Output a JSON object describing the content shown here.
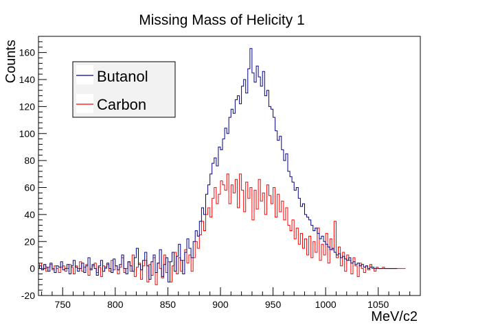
{
  "chart_data": {
    "type": "histogram",
    "title": "Missing Mass of Helicity 1",
    "xlabel": "MeV/c2",
    "ylabel": "Counts",
    "xlim": [
      727,
      1090
    ],
    "ylim": [
      -20,
      172
    ],
    "x_ticks": [
      750,
      800,
      850,
      900,
      950,
      1000,
      1050
    ],
    "y_ticks": [
      -20,
      0,
      20,
      40,
      60,
      80,
      100,
      120,
      140,
      160
    ],
    "legend": {
      "position": "top-left",
      "entries": [
        "Butanol",
        "Carbon"
      ]
    },
    "x": [
      727,
      729,
      731,
      733,
      735,
      737,
      739,
      741,
      743,
      745,
      747,
      749,
      751,
      753,
      755,
      757,
      759,
      761,
      763,
      765,
      767,
      769,
      771,
      773,
      775,
      777,
      779,
      781,
      783,
      785,
      787,
      789,
      791,
      793,
      795,
      797,
      799,
      801,
      803,
      805,
      807,
      809,
      811,
      813,
      815,
      817,
      819,
      821,
      823,
      825,
      827,
      829,
      831,
      833,
      835,
      837,
      839,
      841,
      843,
      845,
      847,
      849,
      851,
      853,
      855,
      857,
      859,
      861,
      863,
      865,
      867,
      869,
      871,
      873,
      875,
      877,
      879,
      881,
      883,
      885,
      887,
      889,
      891,
      893,
      895,
      897,
      899,
      901,
      903,
      905,
      907,
      909,
      911,
      913,
      915,
      917,
      919,
      921,
      923,
      925,
      927,
      929,
      931,
      933,
      935,
      937,
      939,
      941,
      943,
      945,
      947,
      949,
      951,
      953,
      955,
      957,
      959,
      961,
      963,
      965,
      967,
      969,
      971,
      973,
      975,
      977,
      979,
      981,
      983,
      985,
      987,
      989,
      991,
      993,
      995,
      997,
      999,
      1001,
      1003,
      1005,
      1007,
      1009,
      1011,
      1013,
      1015,
      1017,
      1019,
      1021,
      1023,
      1025,
      1027,
      1029,
      1031,
      1033,
      1035,
      1037,
      1039,
      1041,
      1043,
      1045,
      1047,
      1049,
      1051,
      1053,
      1055,
      1057,
      1059,
      1061,
      1063,
      1065,
      1067,
      1069,
      1071,
      1073,
      1075,
      1077,
      1079,
      1081,
      1083,
      1085,
      1087,
      1089
    ],
    "series": [
      {
        "name": "Butanol",
        "color": "#00008b",
        "values": [
          0,
          2,
          -1,
          3,
          1,
          -2,
          4,
          0,
          -3,
          2,
          1,
          5,
          -1,
          0,
          3,
          -4,
          2,
          6,
          1,
          -2,
          0,
          4,
          -3,
          2,
          8,
          -1,
          3,
          0,
          -5,
          2,
          6,
          -2,
          1,
          4,
          0,
          -3,
          7,
          2,
          -1,
          3,
          10,
          0,
          -4,
          5,
          2,
          -2,
          8,
          15,
          3,
          -1,
          6,
          12,
          2,
          -8,
          5,
          10,
          -3,
          4,
          14,
          -6,
          3,
          8,
          -10,
          5,
          12,
          -2,
          9,
          18,
          6,
          -4,
          12,
          22,
          15,
          8,
          20,
          28,
          24,
          35,
          45,
          40,
          55,
          62,
          70,
          78,
          82,
          76,
          90,
          88,
          96,
          104,
          100,
          112,
          118,
          115,
          125,
          128,
          122,
          135,
          140,
          130,
          148,
          163,
          145,
          138,
          150,
          142,
          135,
          146,
          128,
          132,
          120,
          118,
          112,
          102,
          95,
          98,
          88,
          80,
          85,
          72,
          68,
          64,
          58,
          60,
          52,
          46,
          48,
          40,
          38,
          36,
          32,
          28,
          30,
          26,
          22,
          24,
          20,
          18,
          16,
          14,
          15,
          12,
          10,
          11,
          8,
          9,
          7,
          6,
          8,
          4,
          5,
          3,
          4,
          2,
          3,
          1,
          2,
          0,
          1,
          1,
          0,
          0,
          0,
          0,
          0,
          0,
          0,
          0,
          0,
          0,
          0
        ]
      },
      {
        "name": "Carbon",
        "color": "#ff0000",
        "values": [
          2,
          4,
          0,
          3,
          -2,
          1,
          3,
          -1,
          2,
          0,
          -3,
          1,
          2,
          -2,
          0,
          3,
          1,
          -4,
          2,
          0,
          5,
          -2,
          1,
          3,
          -5,
          0,
          2,
          4,
          -3,
          1,
          -6,
          2,
          0,
          3,
          -2,
          6,
          -1,
          2,
          -4,
          1,
          8,
          -3,
          0,
          5,
          -2,
          10,
          -6,
          1,
          4,
          -8,
          2,
          6,
          -10,
          3,
          -5,
          8,
          -12,
          4,
          0,
          -7,
          10,
          -3,
          5,
          -10,
          2,
          12,
          -4,
          8,
          -2,
          6,
          14,
          4,
          10,
          -2,
          8,
          20,
          15,
          25,
          35,
          28,
          40,
          45,
          38,
          52,
          60,
          48,
          55,
          65,
          62,
          58,
          70,
          48,
          62,
          56,
          66,
          45,
          70,
          58,
          42,
          64,
          52,
          60,
          36,
          58,
          44,
          66,
          50,
          56,
          40,
          62,
          54,
          48,
          60,
          38,
          55,
          42,
          50,
          36,
          45,
          32,
          28,
          36,
          22,
          30,
          18,
          26,
          15,
          22,
          10,
          24,
          8,
          20,
          12,
          30,
          6,
          18,
          10,
          26,
          4,
          22,
          14,
          35,
          8,
          16,
          2,
          12,
          -2,
          10,
          6,
          -4,
          8,
          2,
          -6,
          4,
          0,
          -3,
          2,
          -1,
          3,
          0,
          -2,
          1,
          0,
          0,
          1,
          0,
          0,
          0,
          0,
          0,
          0,
          0,
          0,
          0,
          0
        ]
      }
    ]
  }
}
